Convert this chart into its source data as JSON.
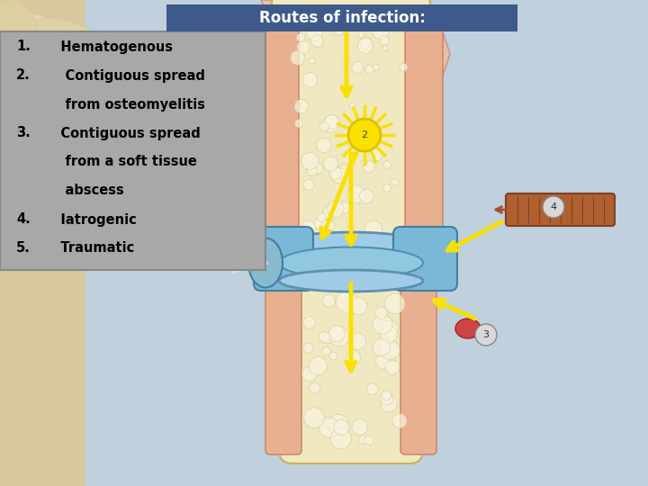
{
  "title": "Routes of infection:",
  "title_bg_color": "#3d5a8a",
  "title_text_color": "#ffffff",
  "title_fontsize": 12,
  "slide_bg_color": "#b8ccd8",
  "left_panel_bg": "#a8a8a8",
  "left_panel_border": "#888888",
  "figsize": [
    7.2,
    5.4
  ],
  "dpi": 100,
  "beige_bg": "#d8c8a0",
  "bone_color": "#f0e8c0",
  "bone_edge": "#c8b060",
  "skin_color": "#e8c0a8",
  "skin_edge": "#c89080",
  "cartilage_color": "#90c8e8",
  "cartilage_dark": "#6090b0",
  "joint_bg": "#b8d8f0",
  "star_color": "#f8e000",
  "star_edge": "#e0c000",
  "arrow_color": "#f8e000",
  "needle_color": "#b06030",
  "needle_edge": "#804020",
  "pink_tissue": "#e89898",
  "label_circle_color": "#d0d0d0",
  "lines": [
    {
      "num": "1.",
      "text": "   Hematogenous"
    },
    {
      "num": "2.",
      "text": "    Contiguous spread"
    },
    {
      "num": "",
      "text": "    from osteomyelitis"
    },
    {
      "num": "3.",
      "text": "   Contiguous spread"
    },
    {
      "num": "",
      "text": "    from a soft tissue"
    },
    {
      "num": "",
      "text": "    abscess"
    },
    {
      "num": "4.",
      "text": "   Iatrogenic"
    },
    {
      "num": "5.",
      "text": "   Traumatic"
    }
  ]
}
